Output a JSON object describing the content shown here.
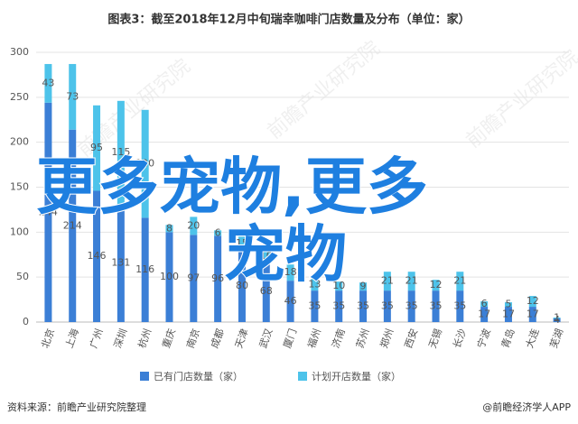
{
  "chart_data": {
    "type": "bar",
    "stacked": true,
    "title": "图表3：截至2018年12月中旬瑞幸咖啡门店数量及分布（单位：家）",
    "categories": [
      "北京",
      "上海",
      "广州",
      "深圳",
      "杭州",
      "重庆",
      "南京",
      "成都",
      "天津",
      "武汉",
      "厦门",
      "福州",
      "济南",
      "苏州",
      "郑州",
      "西安",
      "无锡",
      "长沙",
      "宁波",
      "青岛",
      "大连",
      "芜湖"
    ],
    "series": [
      {
        "name": "已有门店数量（家）",
        "color": "#3b7fd6",
        "values": [
          244,
          214,
          146,
          131,
          116,
          100,
          97,
          96,
          80,
          68,
          46,
          35,
          35,
          35,
          35,
          35,
          35,
          35,
          17,
          17,
          17,
          4
        ]
      },
      {
        "name": "计划开店数量（家）",
        "color": "#4dc3ea",
        "values": [
          43,
          73,
          95,
          115,
          120,
          8,
          20,
          6,
          15,
          10,
          18,
          13,
          10,
          9,
          21,
          21,
          12,
          21,
          6,
          5,
          12,
          1
        ]
      }
    ],
    "ylim": [
      0,
      300
    ],
    "yticks": [
      0,
      50,
      100,
      150,
      200,
      250,
      300
    ],
    "grid": true,
    "legend": "bottom",
    "overlay_text": [
      "更多宠物,更多",
      "宠物"
    ],
    "watermark": "前瞻产业研究院",
    "source": "资料来源：前瞻产业研究院整理",
    "credit": "@前瞻经济学人APP"
  }
}
